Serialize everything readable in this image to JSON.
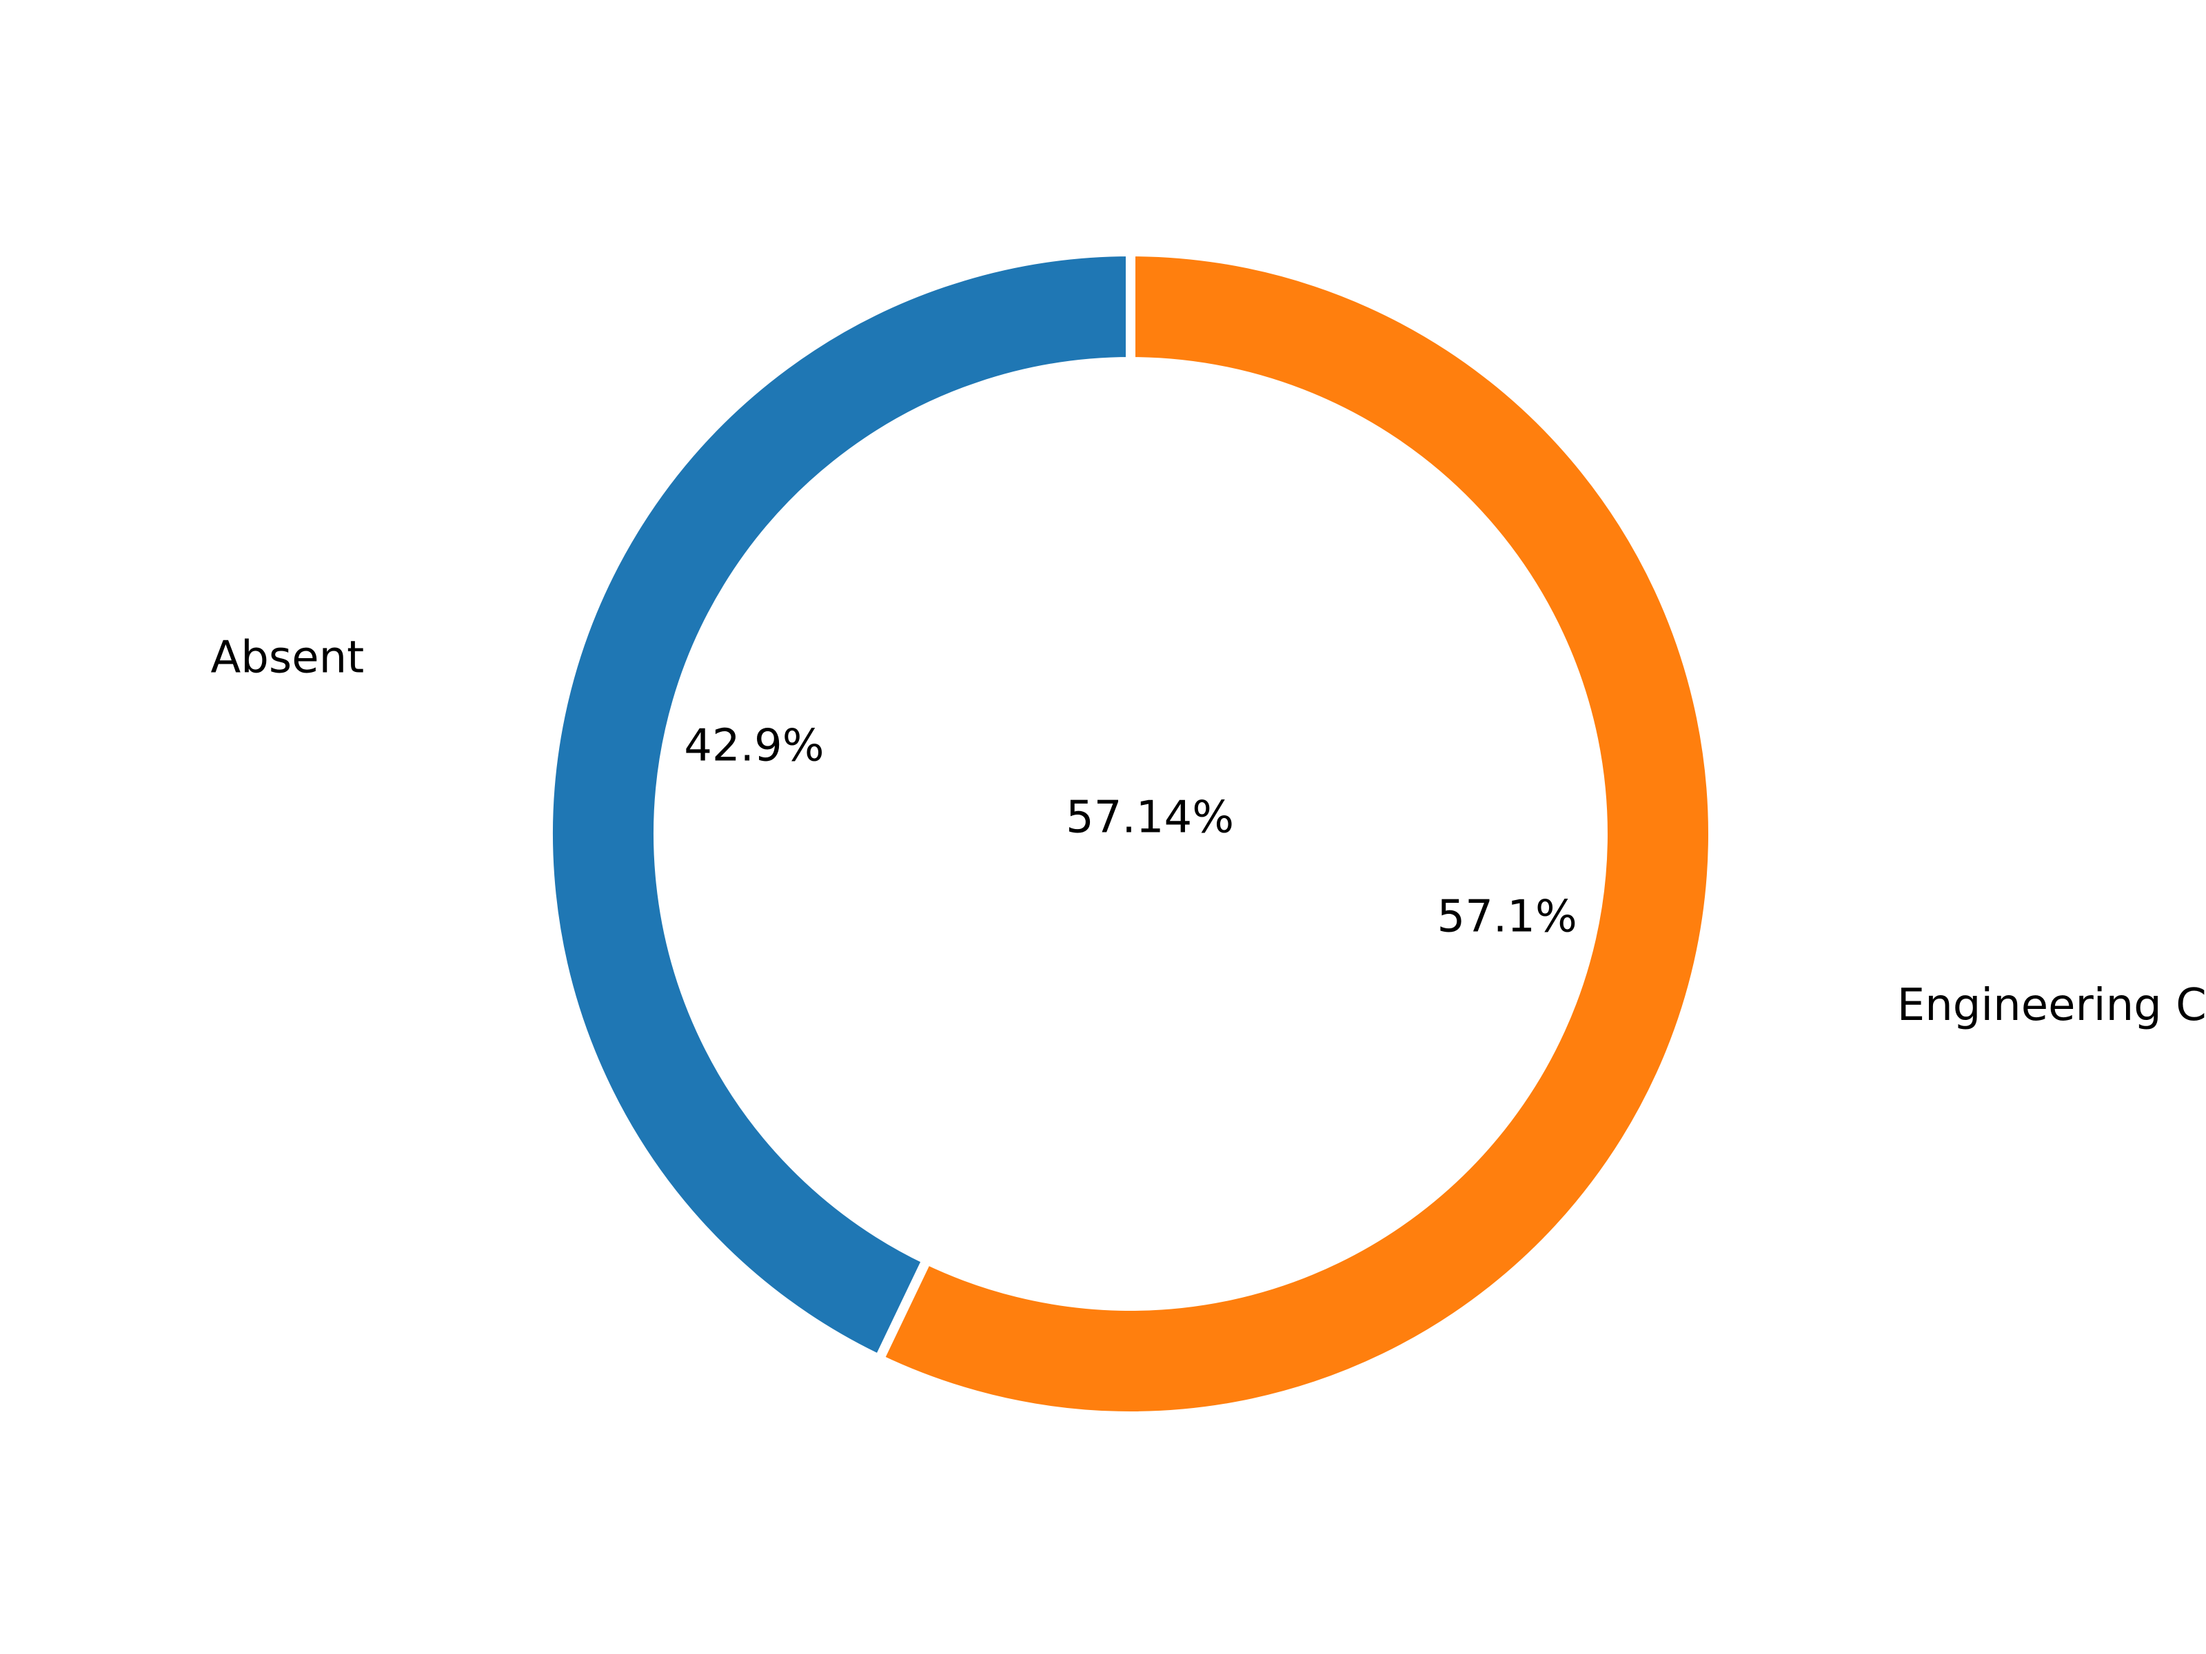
{
  "chart_data": {
    "type": "pie",
    "style": "donut",
    "title": "",
    "center_label": "57.14%",
    "start_angle_deg": 90,
    "direction": "counterclockwise",
    "slices": [
      {
        "label": "Absent",
        "value": 42.9,
        "pct_label": "42.9%",
        "color": "#1f77b4"
      },
      {
        "label": "Engineering Chemi",
        "value": 57.1,
        "pct_label": "57.1%",
        "color": "#ff7f0e"
      }
    ],
    "legend": false,
    "grid": false
  }
}
